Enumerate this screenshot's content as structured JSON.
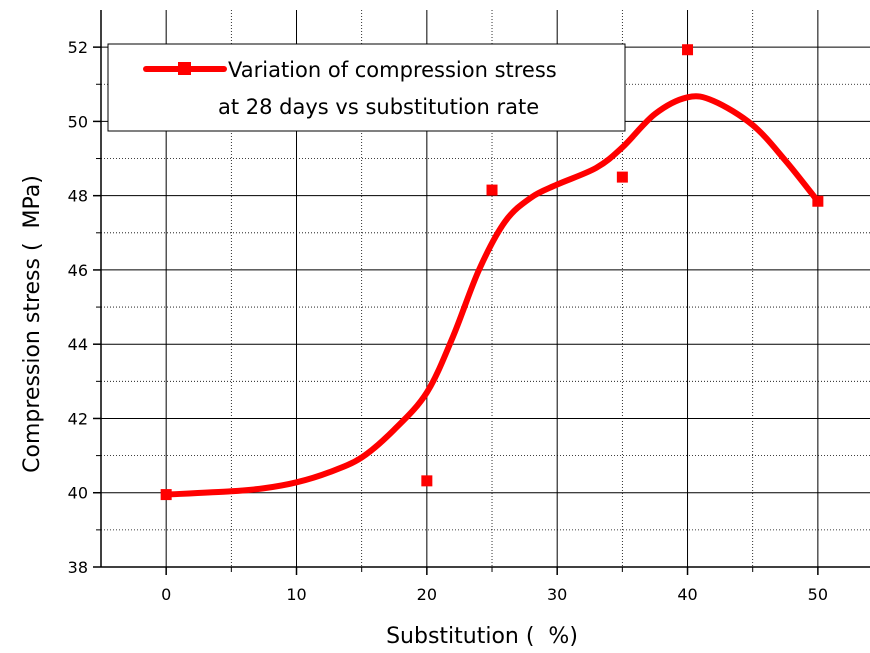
{
  "chart_data": {
    "type": "scatter",
    "title": "",
    "xlabel": "Substitution (  %)",
    "ylabel": "Compression stress (  MPa)",
    "xlim": [
      -5,
      54
    ],
    "ylim": [
      38,
      53
    ],
    "xticks": [
      0,
      10,
      20,
      30,
      40,
      50
    ],
    "yticks": [
      38,
      40,
      42,
      44,
      46,
      48,
      50,
      52
    ],
    "grid": true,
    "legend_placement": "top-left",
    "series": [
      {
        "name": "Variation of compression stress at 28 days vs substitution  rate",
        "name_lines": [
          "Variation of compression stress",
          "at 28 days vs substitution  rate"
        ],
        "color": "#ff0000",
        "marker": "square",
        "points": [
          {
            "x": 0,
            "y": 39.95
          },
          {
            "x": 20,
            "y": 40.32
          },
          {
            "x": 25,
            "y": 48.15
          },
          {
            "x": 35,
            "y": 48.5
          },
          {
            "x": 40,
            "y": 51.93
          },
          {
            "x": 50,
            "y": 47.85
          }
        ],
        "fit_curve": [
          {
            "x": 0,
            "y": 39.95
          },
          {
            "x": 5,
            "y": 40.04
          },
          {
            "x": 7.5,
            "y": 40.12
          },
          {
            "x": 10,
            "y": 40.28
          },
          {
            "x": 12.5,
            "y": 40.55
          },
          {
            "x": 15,
            "y": 40.95
          },
          {
            "x": 17.5,
            "y": 41.7
          },
          {
            "x": 20,
            "y": 42.7
          },
          {
            "x": 22,
            "y": 44.2
          },
          {
            "x": 24,
            "y": 46.0
          },
          {
            "x": 26,
            "y": 47.3
          },
          {
            "x": 28,
            "y": 47.95
          },
          {
            "x": 30,
            "y": 48.3
          },
          {
            "x": 33,
            "y": 48.75
          },
          {
            "x": 35,
            "y": 49.3
          },
          {
            "x": 37.5,
            "y": 50.2
          },
          {
            "x": 40,
            "y": 50.65
          },
          {
            "x": 42,
            "y": 50.55
          },
          {
            "x": 45,
            "y": 49.9
          },
          {
            "x": 47.5,
            "y": 48.95
          },
          {
            "x": 50,
            "y": 47.85
          }
        ]
      }
    ]
  }
}
